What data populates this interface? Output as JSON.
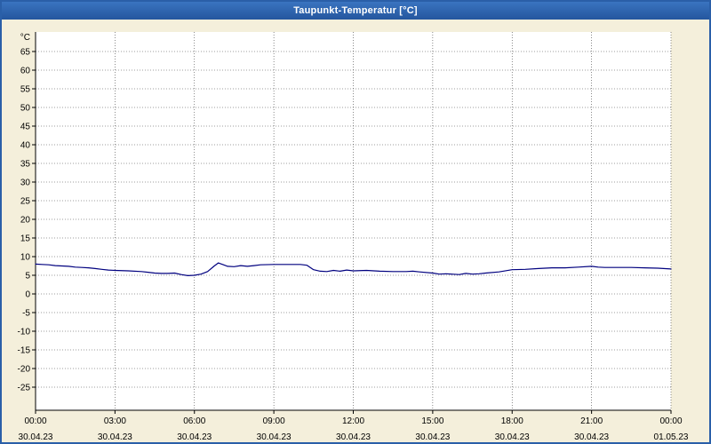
{
  "window": {
    "title": "Taupunkt-Temperatur [°C]"
  },
  "chart_data": {
    "type": "line",
    "title": "Taupunkt-Temperatur [°C]",
    "xlabel": "",
    "ylabel": "°C",
    "ylim": [
      -25,
      65
    ],
    "ytick_step": 5,
    "xlim_hours": [
      0,
      24
    ],
    "grid": "dotted",
    "legend_position": "none",
    "xticks": [
      {
        "hour": 0,
        "time": "00:00",
        "date": "30.04.23"
      },
      {
        "hour": 3,
        "time": "03:00",
        "date": "30.04.23"
      },
      {
        "hour": 6,
        "time": "06:00",
        "date": "30.04.23"
      },
      {
        "hour": 9,
        "time": "09:00",
        "date": "30.04.23"
      },
      {
        "hour": 12,
        "time": "12:00",
        "date": "30.04.23"
      },
      {
        "hour": 15,
        "time": "15:00",
        "date": "30.04.23"
      },
      {
        "hour": 18,
        "time": "18:00",
        "date": "30.04.23"
      },
      {
        "hour": 21,
        "time": "21:00",
        "date": "30.04.23"
      },
      {
        "hour": 24,
        "time": "00:00",
        "date": "01.05.23"
      }
    ],
    "series": [
      {
        "name": "Taupunkt-Temperatur",
        "color": "#00007f",
        "points": [
          [
            0,
            8.0
          ],
          [
            0.25,
            7.9
          ],
          [
            0.5,
            7.8
          ],
          [
            0.75,
            7.6
          ],
          [
            1,
            7.5
          ],
          [
            1.25,
            7.4
          ],
          [
            1.5,
            7.2
          ],
          [
            1.75,
            7.1
          ],
          [
            2,
            7.0
          ],
          [
            2.25,
            6.8
          ],
          [
            2.5,
            6.6
          ],
          [
            2.75,
            6.4
          ],
          [
            3,
            6.3
          ],
          [
            3.5,
            6.2
          ],
          [
            4,
            6.0
          ],
          [
            4.25,
            5.8
          ],
          [
            4.5,
            5.6
          ],
          [
            4.75,
            5.5
          ],
          [
            5,
            5.5
          ],
          [
            5.25,
            5.6
          ],
          [
            5.5,
            5.2
          ],
          [
            5.75,
            4.9
          ],
          [
            6,
            5.0
          ],
          [
            6.25,
            5.3
          ],
          [
            6.5,
            6.0
          ],
          [
            6.75,
            7.5
          ],
          [
            6.9,
            8.3
          ],
          [
            7.1,
            7.8
          ],
          [
            7.25,
            7.4
          ],
          [
            7.5,
            7.3
          ],
          [
            7.75,
            7.6
          ],
          [
            8,
            7.4
          ],
          [
            8.25,
            7.6
          ],
          [
            8.5,
            7.8
          ],
          [
            9,
            7.9
          ],
          [
            9.5,
            7.9
          ],
          [
            10,
            7.9
          ],
          [
            10.25,
            7.7
          ],
          [
            10.5,
            6.5
          ],
          [
            10.75,
            6.1
          ],
          [
            11,
            6.0
          ],
          [
            11.25,
            6.3
          ],
          [
            11.5,
            6.1
          ],
          [
            11.75,
            6.4
          ],
          [
            12,
            6.2
          ],
          [
            12.5,
            6.3
          ],
          [
            13,
            6.1
          ],
          [
            13.5,
            6.0
          ],
          [
            14,
            6.0
          ],
          [
            14.25,
            6.1
          ],
          [
            14.5,
            5.9
          ],
          [
            15,
            5.6
          ],
          [
            15.25,
            5.3
          ],
          [
            15.5,
            5.4
          ],
          [
            16,
            5.2
          ],
          [
            16.25,
            5.5
          ],
          [
            16.5,
            5.3
          ],
          [
            16.75,
            5.4
          ],
          [
            17,
            5.6
          ],
          [
            17.5,
            5.9
          ],
          [
            18,
            6.5
          ],
          [
            18.5,
            6.6
          ],
          [
            19,
            6.8
          ],
          [
            19.5,
            7.0
          ],
          [
            20,
            7.0
          ],
          [
            20.5,
            7.2
          ],
          [
            21,
            7.4
          ],
          [
            21.25,
            7.2
          ],
          [
            21.5,
            7.1
          ],
          [
            22,
            7.1
          ],
          [
            22.5,
            7.1
          ],
          [
            23,
            7.0
          ],
          [
            23.5,
            6.9
          ],
          [
            24,
            6.7
          ]
        ]
      }
    ],
    "colors": {
      "window_bg": "#f4efdb",
      "plot_bg": "#ffffff",
      "frame": "#2a5fa8",
      "grid": "#3c3c3c",
      "axis": "#000000",
      "line": "#00007f",
      "title_text": "#ffffff"
    }
  }
}
